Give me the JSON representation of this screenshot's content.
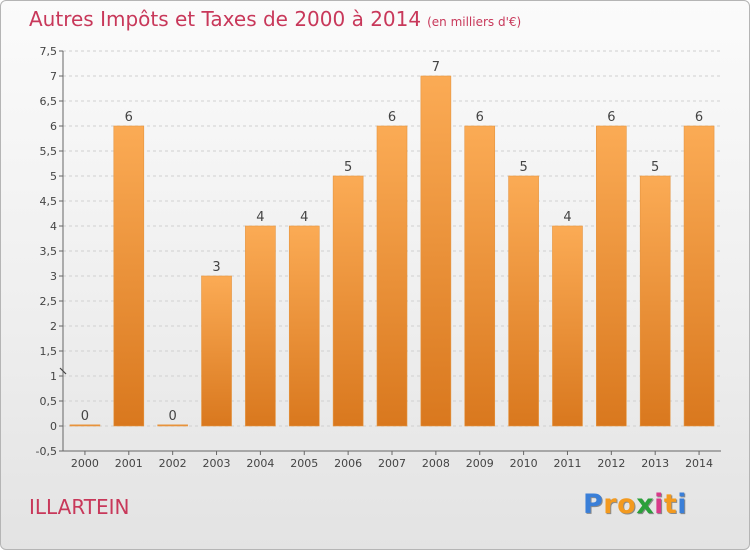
{
  "chart_data": {
    "type": "bar",
    "title": "Autres Impôts et Taxes de 2000 à 2014",
    "subtitle": "(en milliers d'€)",
    "categories": [
      "2000",
      "2001",
      "2002",
      "2003",
      "2004",
      "2005",
      "2006",
      "2007",
      "2008",
      "2009",
      "2010",
      "2011",
      "2012",
      "2013",
      "2014"
    ],
    "values": [
      0,
      6,
      0,
      3,
      4,
      4,
      5,
      6,
      7,
      6,
      5,
      4,
      6,
      5,
      6
    ],
    "labels": [
      "0",
      "6",
      "0",
      "3",
      "4",
      "4",
      "5",
      "6",
      "7",
      "6",
      "5",
      "4",
      "6",
      "5",
      "6"
    ],
    "ylim": [
      -0.5,
      7.5
    ],
    "yticks": [
      "-0,5",
      "0",
      "0,5",
      "1",
      "1,5",
      "2",
      "2,5",
      "3",
      "3,5",
      "4",
      "4,5",
      "5",
      "5,5",
      "6",
      "6,5",
      "7",
      "7,5"
    ],
    "ytick_values": [
      -0.5,
      0,
      0.5,
      1,
      1.5,
      2,
      2.5,
      3,
      3.5,
      4,
      4.5,
      5,
      5.5,
      6,
      6.5,
      7,
      7.5
    ],
    "grid": true,
    "bar_color": "#f7a04a"
  },
  "footer": {
    "commune": "ILLARTEIN",
    "logo_letters": [
      "P",
      "r",
      "o",
      "x",
      "i",
      "t",
      "i"
    ],
    "logo_colors": [
      "#3a7fd8",
      "#f39a1f",
      "#f39a1f",
      "#2aa03a",
      "#d83a8a",
      "#f39a1f",
      "#3a7fd8"
    ]
  }
}
